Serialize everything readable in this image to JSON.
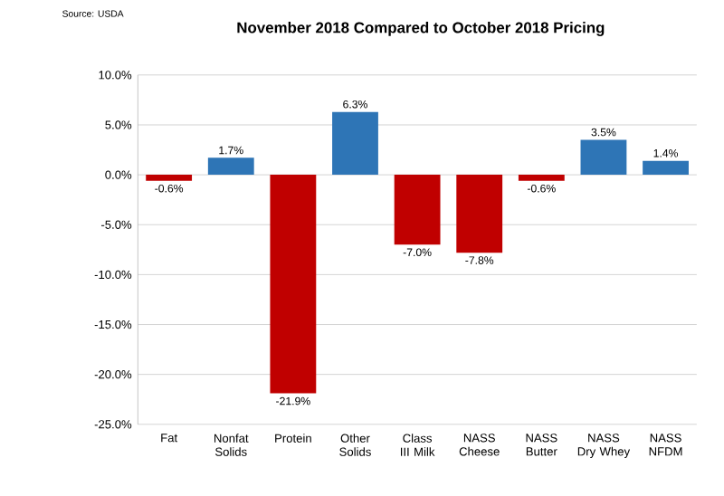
{
  "chart_data": {
    "type": "bar",
    "title": "November 2018 Compared to October 2018 Pricing",
    "categories": [
      "Fat",
      "Nonfat Solids",
      "Protein",
      "Other Solids",
      "Class III Milk",
      "NASS Cheese",
      "NASS Butter",
      "NASS Dry Whey",
      "NASS NFDM"
    ],
    "values": [
      -0.6,
      1.7,
      -21.9,
      6.3,
      -7.0,
      -7.8,
      -0.6,
      3.5,
      1.4
    ],
    "colors": [
      "#c00000",
      "#2e75b6",
      "#c00000",
      "#2e75b6",
      "#c00000",
      "#c00000",
      "#c00000",
      "#2e75b6",
      "#2e75b6"
    ],
    "value_labels": [
      "-0.6%",
      "1.7%",
      "-21.9%",
      "6.3%",
      "-7.0%",
      "-7.8%",
      "-0.6%",
      "3.5%",
      "1.4%"
    ],
    "ylim": [
      -25,
      10
    ],
    "yticks": [
      {
        "value": -25,
        "label": "-25.0%"
      },
      {
        "value": -20,
        "label": "-20.0%"
      },
      {
        "value": -15,
        "label": "-15.0%"
      },
      {
        "value": -10,
        "label": "-10.0%"
      },
      {
        "value": -5,
        "label": "-5.0%"
      },
      {
        "value": 0,
        "label": "0.0%"
      },
      {
        "value": 5,
        "label": "5.0%"
      },
      {
        "value": 10,
        "label": "10.0%"
      }
    ],
    "grid": "y",
    "annotations": [
      "Source: USDA"
    ]
  }
}
